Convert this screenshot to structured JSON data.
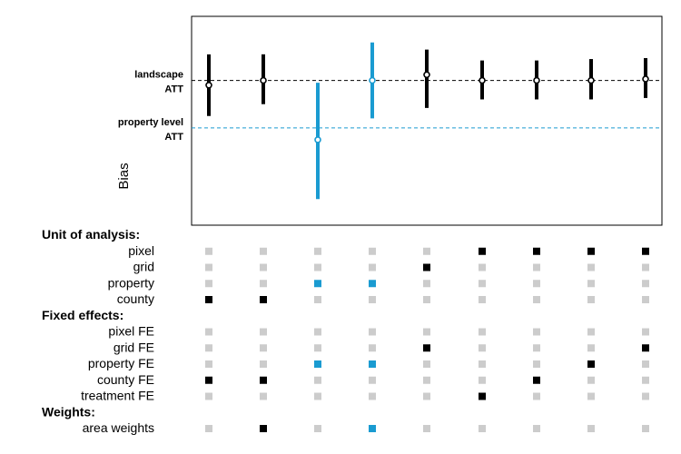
{
  "colors": {
    "black": "#000000",
    "highlight": "#1a9bd1",
    "inactive": "#cccccc"
  },
  "chart_data": {
    "type": "scatter",
    "subtype": "specification-curve",
    "ylabel": "Bias",
    "reference_lines": [
      {
        "label_line1": "landscape",
        "label_line2": "ATT",
        "value": 0.0,
        "style": "dashed",
        "color": "#000000"
      },
      {
        "label_line1": "property level",
        "label_line2": "ATT",
        "value": -1.0,
        "style": "dashed",
        "color": "#1a9bd1"
      }
    ],
    "ylim": [
      -3.05,
      1.35
    ],
    "specifications": [
      {
        "estimate": -0.1,
        "lower": -0.75,
        "upper": 0.55,
        "highlight": false
      },
      {
        "estimate": 0.0,
        "lower": -0.5,
        "upper": 0.55,
        "highlight": false
      },
      {
        "estimate": -1.25,
        "lower": -2.5,
        "upper": -0.05,
        "highlight": true
      },
      {
        "estimate": 0.0,
        "lower": -0.8,
        "upper": 0.8,
        "highlight": true
      },
      {
        "estimate": 0.12,
        "lower": -0.58,
        "upper": 0.65,
        "highlight": false
      },
      {
        "estimate": 0.0,
        "lower": -0.4,
        "upper": 0.42,
        "highlight": false
      },
      {
        "estimate": 0.0,
        "lower": -0.4,
        "upper": 0.42,
        "highlight": false
      },
      {
        "estimate": 0.0,
        "lower": -0.4,
        "upper": 0.45,
        "highlight": false
      },
      {
        "estimate": 0.03,
        "lower": -0.37,
        "upper": 0.47,
        "highlight": false
      }
    ],
    "indicator_panel": [
      {
        "type": "header",
        "label": "Unit of analysis:"
      },
      {
        "type": "row",
        "label": "pixel",
        "active": [
          0,
          0,
          0,
          0,
          0,
          1,
          1,
          1,
          1
        ]
      },
      {
        "type": "row",
        "label": "grid",
        "active": [
          0,
          0,
          0,
          0,
          1,
          0,
          0,
          0,
          0
        ]
      },
      {
        "type": "row",
        "label": "property",
        "active": [
          0,
          0,
          1,
          1,
          0,
          0,
          0,
          0,
          0
        ]
      },
      {
        "type": "row",
        "label": "county",
        "active": [
          1,
          1,
          0,
          0,
          0,
          0,
          0,
          0,
          0
        ]
      },
      {
        "type": "header",
        "label": "Fixed effects:"
      },
      {
        "type": "row",
        "label": "pixel FE",
        "active": [
          0,
          0,
          0,
          0,
          0,
          0,
          0,
          0,
          0
        ]
      },
      {
        "type": "row",
        "label": "grid FE",
        "active": [
          0,
          0,
          0,
          0,
          1,
          0,
          0,
          0,
          1
        ]
      },
      {
        "type": "row",
        "label": "property FE",
        "active": [
          0,
          0,
          1,
          1,
          0,
          0,
          0,
          1,
          0
        ]
      },
      {
        "type": "row",
        "label": "county FE",
        "active": [
          1,
          1,
          0,
          0,
          0,
          0,
          1,
          0,
          0
        ]
      },
      {
        "type": "row",
        "label": "treatment FE",
        "active": [
          0,
          0,
          0,
          0,
          0,
          1,
          0,
          0,
          0
        ]
      },
      {
        "type": "header",
        "label": "Weights:"
      },
      {
        "type": "row",
        "label": "area weights",
        "active": [
          0,
          1,
          0,
          1,
          0,
          0,
          0,
          0,
          0
        ]
      }
    ]
  }
}
